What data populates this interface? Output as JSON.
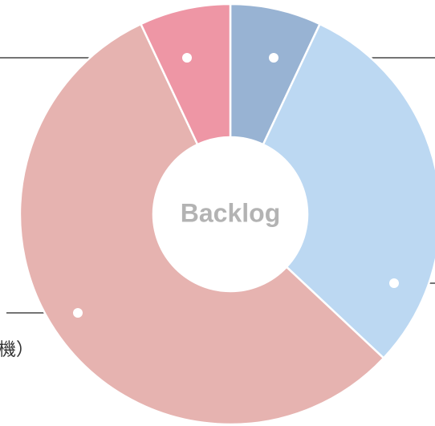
{
  "chart_data": {
    "type": "pie",
    "donut": true,
    "center_text": "Backlog",
    "categories": [
      null,
      null,
      "機）",
      null
    ],
    "values": [
      7,
      30,
      56,
      7
    ],
    "colors": [
      "#98b3d3",
      "#bcd8f2",
      "#e6b3b0",
      "#ee96a5"
    ]
  }
}
